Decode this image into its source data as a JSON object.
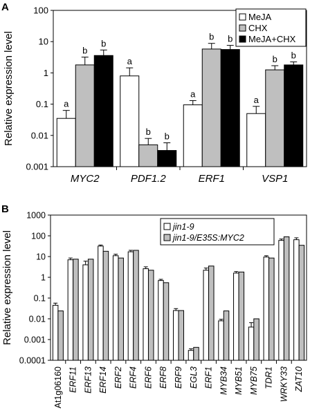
{
  "chart_data": [
    {
      "panel": "A",
      "type": "bar",
      "scale": "log",
      "ylabel": "Relative expression level",
      "ylim": [
        0.001,
        100
      ],
      "yticks": [
        "100",
        "10",
        "1",
        "0.1",
        "0.01",
        "0.001"
      ],
      "categories": [
        "MYC2",
        "PDF1.2",
        "ERF1",
        "VSP1"
      ],
      "legend_position": "top-right",
      "series": [
        {
          "name": "MeJA",
          "color": "#ffffff",
          "values": [
            0.035,
            0.8,
            0.095,
            0.05
          ],
          "errors": [
            0.028,
            0.65,
            0.035,
            0.035
          ],
          "letters": [
            "a",
            "a",
            "a",
            "a"
          ]
        },
        {
          "name": "CHX",
          "color": "#bfbfbf",
          "values": [
            1.8,
            0.005,
            5.8,
            1.25
          ],
          "errors": [
            1.4,
            0.003,
            3.0,
            0.45
          ],
          "letters": [
            "b",
            "b",
            "b",
            "b"
          ]
        },
        {
          "name": "MeJA+CHX",
          "color": "#000000",
          "values": [
            3.6,
            0.0033,
            5.6,
            1.8
          ],
          "errors": [
            1.8,
            0.0025,
            2.0,
            0.45
          ],
          "letters": [
            "b",
            "b",
            "b",
            "b"
          ]
        }
      ]
    },
    {
      "panel": "B",
      "type": "bar",
      "scale": "log",
      "ylabel": "Relative expression level",
      "ylim": [
        0.0001,
        1000
      ],
      "yticks": [
        "1000",
        "100",
        "10",
        "1",
        "0.1",
        "0.01",
        "0.001",
        "0.0001"
      ],
      "categories": [
        "At1g06160",
        "ERF11",
        "ERF13",
        "ERF14",
        "ERF2",
        "ERF4",
        "ERF6",
        "ERF8",
        "ERF9",
        "EGL3",
        "ERF1",
        "MYB34",
        "MYB51",
        "MYB75",
        "TDR1",
        "WRKY33",
        "ZAT10"
      ],
      "italic_categories": [
        false,
        true,
        true,
        true,
        true,
        true,
        true,
        true,
        true,
        true,
        true,
        true,
        true,
        true,
        true,
        true,
        true
      ],
      "legend_position": "top-center",
      "series": [
        {
          "name": "jin1-9",
          "color": "#ffffff",
          "values": [
            0.045,
            7.0,
            4.0,
            32,
            11,
            17,
            2.6,
            0.7,
            0.025,
            0.0003,
            2.2,
            0.008,
            1.6,
            0.004,
            9.5,
            60,
            65
          ],
          "errors": [
            0.012,
            1.5,
            2.0,
            4,
            2,
            3,
            0.6,
            0.1,
            0.006,
            6e-05,
            0.6,
            0.0015,
            0.3,
            0.0025,
            1.5,
            10,
            15
          ]
        },
        {
          "name": "jin1-9/E35S:MYC2",
          "color": "#bfbfbf",
          "values": [
            0.024,
            7.5,
            7.5,
            18,
            8.5,
            20,
            2.2,
            0.55,
            0.025,
            0.00042,
            3.5,
            0.024,
            1.8,
            0.01,
            8.5,
            90,
            35
          ]
        }
      ]
    }
  ],
  "panel_labels": {
    "a": "A",
    "b": "B"
  }
}
